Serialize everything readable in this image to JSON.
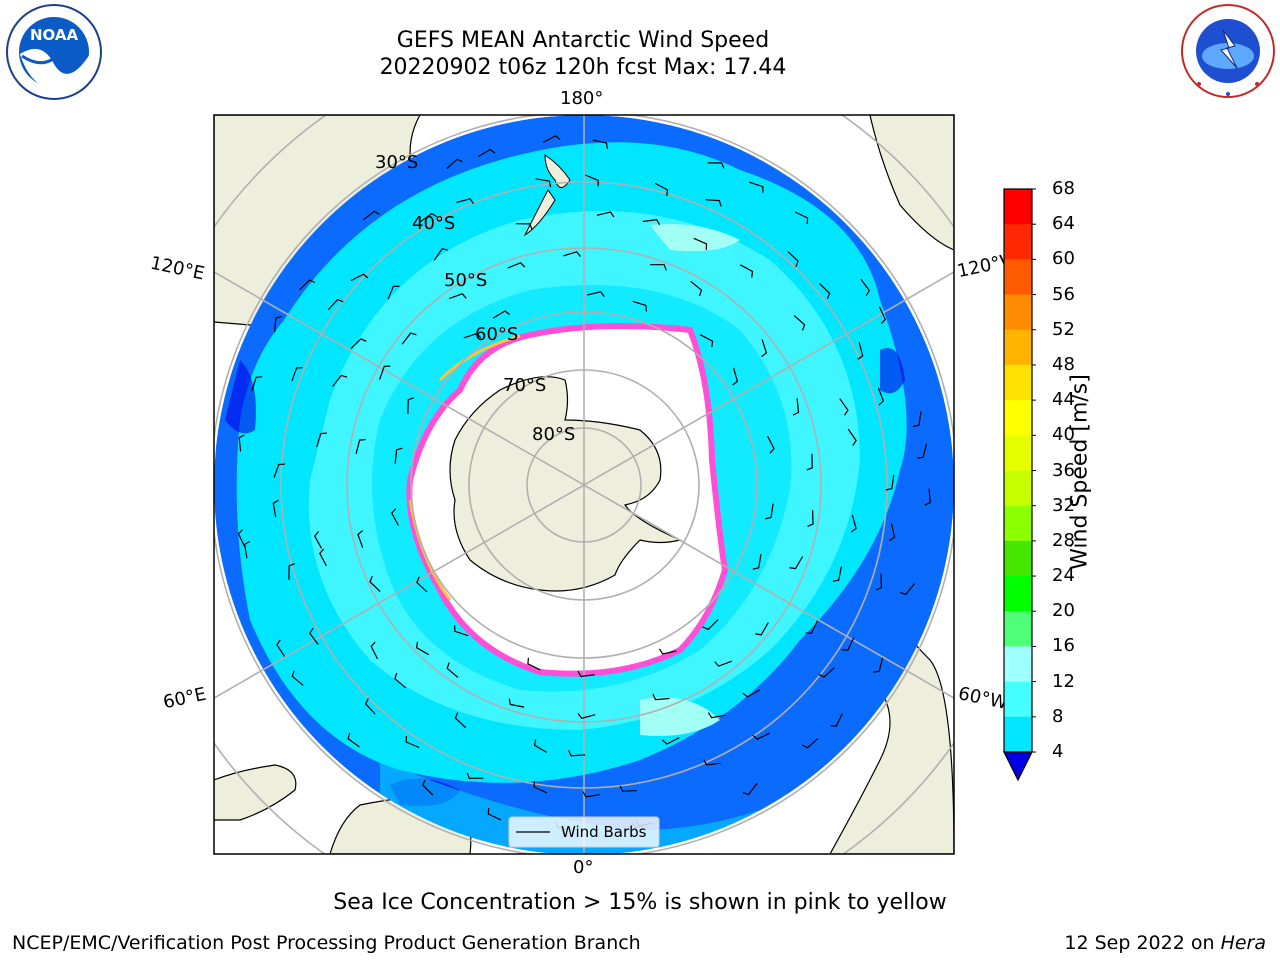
{
  "title": {
    "line1": "GEFS MEAN Antarctic Wind Speed",
    "line2": "20220902 t06z 120h fcst   Max: 17.44"
  },
  "logos": {
    "noaa": {
      "text": "NOAA",
      "ring_text": "NATIONAL OCEANIC AND ATMOSPHERIC ADMINISTRATION · U.S. DEPARTMENT OF COMMERCE"
    },
    "nws": {
      "ring_text": "NATIONAL WEATHER SERVICE"
    }
  },
  "map": {
    "projection": "south polar stereographic",
    "longitude_labels": [
      "180°",
      "120°E",
      "120°W",
      "60°E",
      "60°W",
      "0°"
    ],
    "latitude_labels": [
      "30°S",
      "40°S",
      "50°S",
      "60°S",
      "70°S",
      "80°S"
    ],
    "legend_label": "Wind Barbs",
    "colors": {
      "ocean_4_8": "#0c6bff",
      "ocean_8_12": "#00e6ff",
      "ocean_12_16": "#3ff5ff",
      "ocean_16_20": "#a2fff5",
      "land": "#eeeedc",
      "sea_ice_edge": "#ff4fd6",
      "sea_ice_inner": "#ffc23a"
    }
  },
  "colorbar": {
    "label": "Wind Speed [m/s]",
    "ticks": [
      "68",
      "64",
      "60",
      "56",
      "52",
      "48",
      "44",
      "40",
      "36",
      "32",
      "28",
      "24",
      "20",
      "16",
      "12",
      "8",
      "4"
    ],
    "colors": [
      "#ff0000",
      "#ff2800",
      "#ff5a00",
      "#ff8c00",
      "#ffb400",
      "#ffe100",
      "#ffff00",
      "#e6ff00",
      "#c8ff00",
      "#8cff00",
      "#46e600",
      "#00ff00",
      "#50ff78",
      "#a0ffff",
      "#46ffff",
      "#00e6ff",
      "#0a6bff",
      "#0000e6"
    ],
    "extend": "min"
  },
  "note": "Sea Ice Concentration > 15% is shown in pink to yellow",
  "footer": {
    "left": "NCEP/EMC/Verification Post Processing Product Generation Branch",
    "right_prefix": "12 Sep 2022 on ",
    "right_italic": "Hera"
  }
}
